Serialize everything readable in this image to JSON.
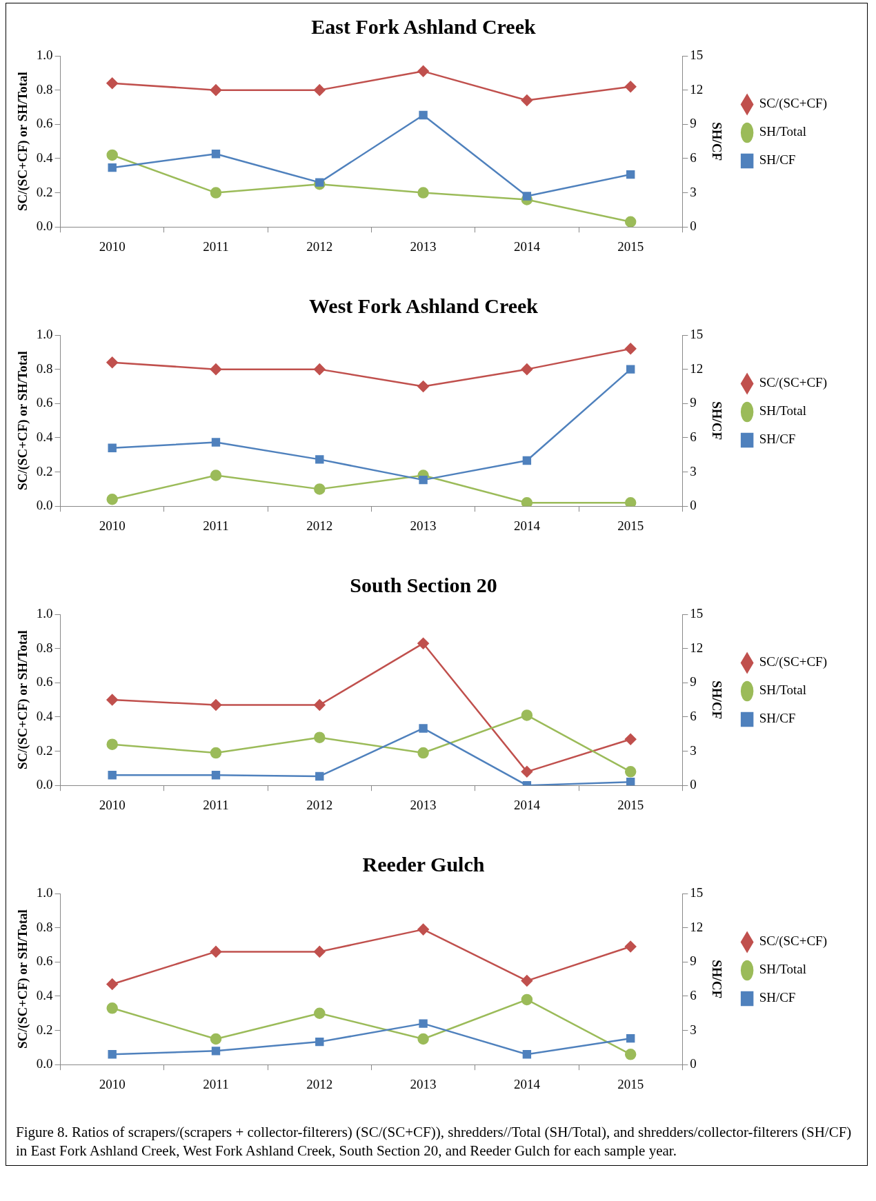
{
  "chart_data": [
    {
      "type": "line",
      "title": "East Fork Ashland Creek",
      "ylabel": "SC/(SC+CF) or SH/Total",
      "y2label": "SH/CF",
      "categories": [
        "2010",
        "2011",
        "2012",
        "2013",
        "2014",
        "2015"
      ],
      "ylim": [
        0,
        1
      ],
      "yticks": [
        {
          "value": 0,
          "label": "0.0"
        },
        {
          "value": 0.2,
          "label": "0.2"
        },
        {
          "value": 0.4,
          "label": "0.4"
        },
        {
          "value": 0.6,
          "label": "0.6"
        },
        {
          "value": 0.8,
          "label": "0.8"
        },
        {
          "value": 1,
          "label": "1.0"
        }
      ],
      "y2lim": [
        0,
        15
      ],
      "y2ticks": [
        0,
        3,
        6,
        9,
        12,
        15
      ],
      "legend": "right",
      "line_style": "solid",
      "series": [
        {
          "name": "SC/(SC+CF)",
          "color": "#c0504d",
          "marker": "diamond",
          "values": [
            0.84,
            0.8,
            0.8,
            0.91,
            0.74,
            0.82
          ]
        },
        {
          "name": "SH/Total",
          "color": "#9bbb59",
          "marker": "circle",
          "values": [
            0.42,
            0.2,
            0.25,
            0.2,
            0.16,
            0.03
          ]
        },
        {
          "name": "SH/CF",
          "color": "#4f81bd",
          "marker": "square",
          "axis": "y2",
          "values": [
            5.2,
            6.4,
            3.9,
            9.8,
            2.7,
            4.6
          ]
        }
      ]
    },
    {
      "type": "line",
      "title": "West Fork Ashland Creek",
      "ylabel": "SC/(SC+CF) or SH/Total",
      "y2label": "SH/CF",
      "categories": [
        "2010",
        "2011",
        "2012",
        "2013",
        "2014",
        "2015"
      ],
      "ylim": [
        0,
        1
      ],
      "yticks": [
        {
          "value": 0,
          "label": "0.0"
        },
        {
          "value": 0.2,
          "label": "0.2"
        },
        {
          "value": 0.4,
          "label": "0.4"
        },
        {
          "value": 0.6,
          "label": "0.6"
        },
        {
          "value": 0.8,
          "label": "0.8"
        },
        {
          "value": 1,
          "label": "1.0"
        }
      ],
      "y2lim": [
        0,
        15
      ],
      "y2ticks": [
        0,
        3,
        6,
        9,
        12,
        15
      ],
      "legend": "right",
      "line_style": "solid",
      "series": [
        {
          "name": "SC/(SC+CF)",
          "color": "#c0504d",
          "marker": "diamond",
          "values": [
            0.84,
            0.8,
            0.8,
            0.7,
            0.8,
            0.92
          ]
        },
        {
          "name": "SH/Total",
          "color": "#9bbb59",
          "marker": "circle",
          "values": [
            0.04,
            0.18,
            0.1,
            0.18,
            0.02,
            0.02
          ]
        },
        {
          "name": "SH/CF",
          "color": "#4f81bd",
          "marker": "square",
          "axis": "y2",
          "values": [
            5.1,
            5.6,
            4.1,
            2.3,
            4.0,
            12.0
          ]
        }
      ]
    },
    {
      "type": "line",
      "title": "South Section 20",
      "ylabel": "SC/(SC+CF) or SH/Total",
      "y2label": "SH/CF",
      "categories": [
        "2010",
        "2011",
        "2012",
        "2013",
        "2014",
        "2015"
      ],
      "ylim": [
        0,
        1
      ],
      "yticks": [
        {
          "value": 0,
          "label": "0.0"
        },
        {
          "value": 0.2,
          "label": "0.2"
        },
        {
          "value": 0.4,
          "label": "0.4"
        },
        {
          "value": 0.6,
          "label": "0.6"
        },
        {
          "value": 0.8,
          "label": "0.8"
        },
        {
          "value": 1,
          "label": "1.0"
        }
      ],
      "y2lim": [
        0,
        15
      ],
      "y2ticks": [
        0,
        3,
        6,
        9,
        12,
        15
      ],
      "legend": "right",
      "line_style": "solid",
      "series": [
        {
          "name": "SC/(SC+CF)",
          "color": "#c0504d",
          "marker": "diamond",
          "values": [
            0.5,
            0.47,
            0.47,
            0.83,
            0.08,
            0.27
          ]
        },
        {
          "name": "SH/Total",
          "color": "#9bbb59",
          "marker": "circle",
          "values": [
            0.24,
            0.19,
            0.28,
            0.19,
            0.41,
            0.08
          ]
        },
        {
          "name": "SH/CF",
          "color": "#4f81bd",
          "marker": "square",
          "axis": "y2",
          "values": [
            0.9,
            0.9,
            0.8,
            5.0,
            0.0,
            0.3
          ]
        }
      ]
    },
    {
      "type": "line",
      "title": "Reeder Gulch",
      "ylabel": "SC/(SC+CF) or SH/Total",
      "y2label": "SH/CF",
      "categories": [
        "2010",
        "2011",
        "2012",
        "2013",
        "2014",
        "2015"
      ],
      "ylim": [
        0,
        1
      ],
      "yticks": [
        {
          "value": 0,
          "label": "0.0"
        },
        {
          "value": 0.2,
          "label": "0.2"
        },
        {
          "value": 0.4,
          "label": "0.4"
        },
        {
          "value": 0.6,
          "label": "0.6"
        },
        {
          "value": 0.8,
          "label": "0.8"
        },
        {
          "value": 1,
          "label": "1.0"
        }
      ],
      "y2lim": [
        0,
        15
      ],
      "y2ticks": [
        0,
        3,
        6,
        9,
        12,
        15
      ],
      "legend": "right",
      "line_style": "solid",
      "series": [
        {
          "name": "SC/(SC+CF)",
          "color": "#c0504d",
          "marker": "diamond",
          "values": [
            0.47,
            0.66,
            0.66,
            0.79,
            0.49,
            0.69
          ]
        },
        {
          "name": "SH/Total",
          "color": "#9bbb59",
          "marker": "circle",
          "values": [
            0.33,
            0.15,
            0.3,
            0.15,
            0.38,
            0.06
          ]
        },
        {
          "name": "SH/CF",
          "color": "#4f81bd",
          "marker": "square",
          "axis": "y2",
          "values": [
            0.9,
            1.2,
            2.0,
            3.6,
            0.9,
            2.3
          ]
        }
      ],
      "annotations": [
        "Figure 8. Ratios of scrapers/(scrapers + collector-filterers) (SC/(SC+CF)), shredders//Total (SH/Total), and shredders/collector-filterers (SH/CF) in East Fork Ashland Creek, West Fork Ashland Creek, South Section 20, and Reeder Gulch for each sample year."
      ]
    }
  ]
}
